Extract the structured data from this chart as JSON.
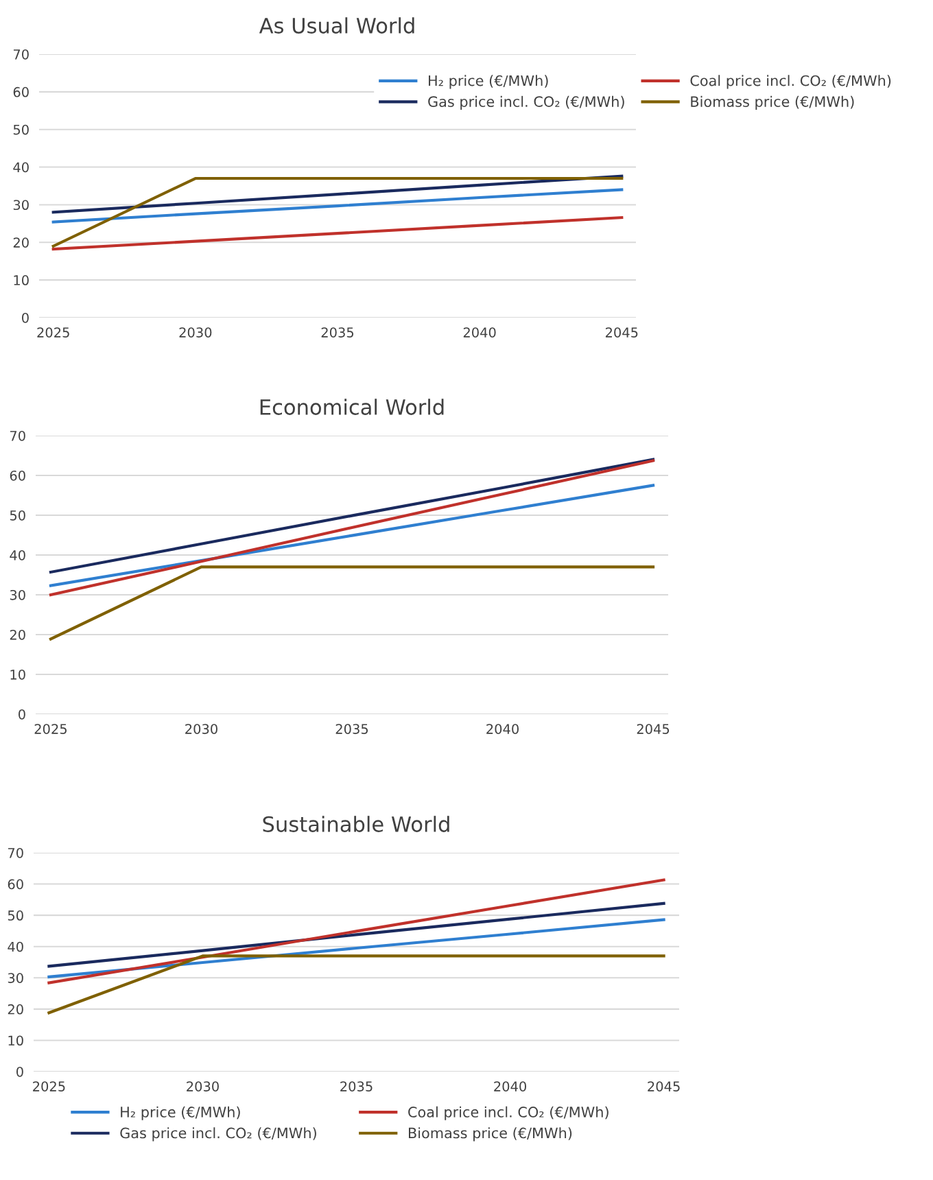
{
  "chart_data": [
    {
      "type": "line",
      "title": "As Usual World",
      "x": [
        2025,
        2030,
        2035,
        2040,
        2045
      ],
      "xlim": [
        2024.5,
        2045.5
      ],
      "xticks": [
        2025,
        2030,
        2035,
        2040,
        2045
      ],
      "ylim": [
        0,
        70
      ],
      "yticks": [
        0,
        10,
        20,
        30,
        40,
        50,
        60,
        70
      ],
      "grid": "y",
      "legend": "top right",
      "line_style": "solid",
      "marker": "none",
      "series": [
        {
          "name": "H₂ price (€/MWh)",
          "color": "#2f7fd0",
          "values": [
            25.4,
            27.6,
            29.7,
            31.9,
            34
          ]
        },
        {
          "name": "Gas price incl. CO₂ (€/MWh)",
          "color": "#1a2a5e",
          "values": [
            28,
            30.4,
            32.8,
            35.2,
            37.6
          ]
        },
        {
          "name": "Coal price incl. CO₂ (€/MWh)",
          "color": "#c0312b",
          "values": [
            18.2,
            20.3,
            22.4,
            24.5,
            26.6
          ]
        },
        {
          "name": "Biomass price (€/MWh)",
          "color": "#7f6000",
          "values": [
            19,
            37,
            37,
            37,
            37
          ]
        }
      ]
    },
    {
      "type": "line",
      "title": "Economical World",
      "x": [
        2025,
        2030,
        2035,
        2040,
        2045
      ],
      "xlim": [
        2024.5,
        2045.5
      ],
      "xticks": [
        2025,
        2030,
        2035,
        2040,
        2045
      ],
      "ylim": [
        0,
        70
      ],
      "yticks": [
        0,
        10,
        20,
        30,
        40,
        50,
        60,
        70
      ],
      "grid": "y",
      "line_style": "solid",
      "marker": "none",
      "series": [
        {
          "color": "#2f7fd0",
          "values": [
            32.3,
            38.6,
            44.9,
            51.2,
            57.5
          ]
        },
        {
          "color": "#1a2a5e",
          "values": [
            35.7,
            42.8,
            49.9,
            56.9,
            64
          ]
        },
        {
          "color": "#c0312b",
          "values": [
            30,
            38.4,
            46.9,
            55.3,
            63.7
          ]
        },
        {
          "color": "#7f6000",
          "values": [
            18.9,
            37,
            37,
            37,
            37
          ]
        }
      ]
    },
    {
      "type": "line",
      "title": "Sustainable World",
      "x": [
        2025,
        2030,
        2035,
        2040,
        2045
      ],
      "xlim": [
        2024.5,
        2045.5
      ],
      "xticks": [
        2025,
        2030,
        2035,
        2040,
        2045
      ],
      "ylim": [
        0,
        70
      ],
      "yticks": [
        0,
        10,
        20,
        30,
        40,
        50,
        60,
        70
      ],
      "grid": "y",
      "legend": "bottom",
      "line_style": "solid",
      "marker": "none",
      "series": [
        {
          "name": "H₂ price (€/MWh)",
          "color": "#2f7fd0",
          "values": [
            30.3,
            34.9,
            39.5,
            44,
            48.6
          ]
        },
        {
          "name": "Gas price incl. CO₂ (€/MWh)",
          "color": "#1a2a5e",
          "values": [
            33.7,
            38.7,
            43.8,
            48.8,
            53.8
          ]
        },
        {
          "name": "Coal price incl. CO₂ (€/MWh)",
          "color": "#c0312b",
          "values": [
            28.4,
            36.6,
            44.9,
            53.1,
            61.3
          ]
        },
        {
          "name": "Biomass price (€/MWh)",
          "color": "#7f6000",
          "values": [
            18.8,
            37,
            37,
            37,
            37
          ]
        }
      ]
    }
  ]
}
